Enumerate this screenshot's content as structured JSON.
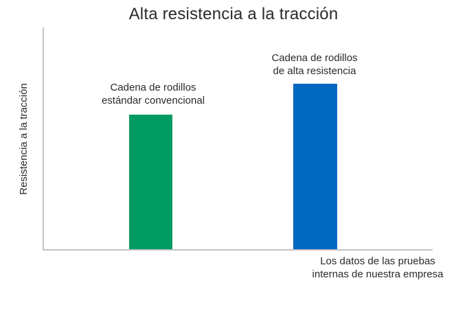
{
  "chart_data": {
    "type": "bar",
    "title": "Alta resistencia a la tracción",
    "ylabel": "Resistencia a la tracción",
    "xlabel": "",
    "categories": [
      "Cadena de rodillos\nestándar convencional",
      "Cadena de rodillos\nde alta resistencia"
    ],
    "series": [
      {
        "name": "Resistencia a la tracción",
        "values": [
          60.7,
          74.6
        ]
      }
    ],
    "values_are": "relative bar heights in % of y-axis (chart shows no numeric scale or tick labels)",
    "ylim": [
      0,
      100
    ],
    "bar_colors": [
      "#009a63",
      "#0068be"
    ],
    "axis_color": "#c5c5c5",
    "text_color": "#2a2a2a",
    "background_color": "#ffffff",
    "grid": false,
    "legend_position": "none",
    "annotation": "Los datos de las pruebas\ninternas de nuestra empresa"
  }
}
